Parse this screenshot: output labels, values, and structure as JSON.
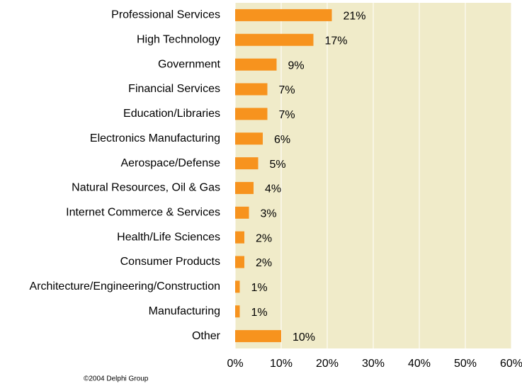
{
  "chart_data": {
    "type": "bar",
    "orientation": "horizontal",
    "categories": [
      "Professional Services",
      "High Technology",
      "Government",
      "Financial Services",
      "Education/Libraries",
      "Electronics Manufacturing",
      "Aerospace/Defense",
      "Natural Resources, Oil & Gas",
      "Internet Commerce & Services",
      "Health/Life Sciences",
      "Consumer Products",
      "Architecture/Engineering/Construction",
      "Manufacturing",
      "Other"
    ],
    "values": [
      21,
      17,
      9,
      7,
      7,
      6,
      5,
      4,
      3,
      2,
      2,
      1,
      1,
      10
    ],
    "value_labels": [
      "21%",
      "17%",
      "9%",
      "7%",
      "7%",
      "6%",
      "5%",
      "4%",
      "3%",
      "2%",
      "2%",
      "1%",
      "1%",
      "10%"
    ],
    "color": "#f7931e",
    "xlim": [
      0,
      60
    ],
    "xticks": [
      {
        "value": 0,
        "label": "0%"
      },
      {
        "value": 10,
        "label": "10%"
      },
      {
        "value": 20,
        "label": "20%"
      },
      {
        "value": 30,
        "label": "30%"
      },
      {
        "value": 40,
        "label": "40%"
      },
      {
        "value": 50,
        "label": "50%"
      },
      {
        "value": 60,
        "label": "60%"
      }
    ],
    "grid": true,
    "footnote": "©2004  Delphi Group"
  }
}
